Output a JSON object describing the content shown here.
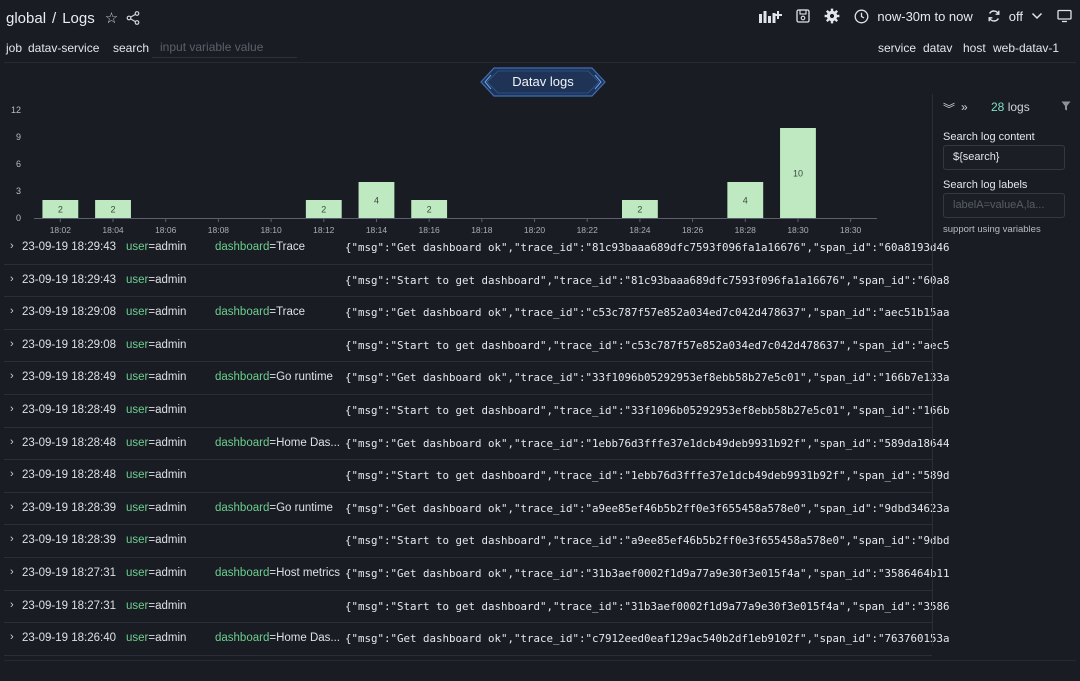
{
  "header": {
    "scope": "global",
    "separator": "/",
    "title": "Logs",
    "time_range": "now-30m to now",
    "refresh": "off"
  },
  "variables": {
    "job_label": "job",
    "job_value": "datav-service",
    "search_label": "search",
    "search_placeholder": "input variable value",
    "service_label": "service",
    "service_value": "datav",
    "host_label": "host",
    "host_value": "web-datav-1"
  },
  "panel": {
    "title": "Datav logs"
  },
  "chart_data": {
    "type": "bar",
    "categories": [
      "18:02",
      "18:04",
      "18:06",
      "18:08",
      "18:10",
      "18:12",
      "18:14",
      "18:16",
      "18:18",
      "18:20",
      "18:22",
      "18:24",
      "18:26",
      "18:28",
      "18:30",
      "18:30"
    ],
    "values": [
      2,
      2,
      0,
      0,
      0,
      2,
      4,
      2,
      0,
      0,
      0,
      2,
      0,
      4,
      10,
      0
    ],
    "yticks": [
      0,
      3,
      6,
      9,
      12
    ],
    "ylim": [
      0,
      12
    ],
    "bar_color": "#bfe9c1",
    "grid": false
  },
  "logs": [
    {
      "ts": "23-09-19 18:29:43",
      "user_key": "user",
      "user_val": "=admin",
      "dash_key": "dashboard",
      "dash_val": "=Trace",
      "msg": "{\"msg\":\"Get dashboard ok\",\"trace_id\":\"81c93baaa689dfc7593f096fa1a16676\",\"span_id\":\"60a8193d46"
    },
    {
      "ts": "23-09-19 18:29:43",
      "user_key": "user",
      "user_val": "=admin",
      "dash_key": "",
      "dash_val": "",
      "msg": "{\"msg\":\"Start to get dashboard\",\"trace_id\":\"81c93baaa689dfc7593f096fa1a16676\",\"span_id\":\"60a8"
    },
    {
      "ts": "23-09-19 18:29:08",
      "user_key": "user",
      "user_val": "=admin",
      "dash_key": "dashboard",
      "dash_val": "=Trace",
      "msg": "{\"msg\":\"Get dashboard ok\",\"trace_id\":\"c53c787f57e852a034ed7c042d478637\",\"span_id\":\"aec51b15aa"
    },
    {
      "ts": "23-09-19 18:29:08",
      "user_key": "user",
      "user_val": "=admin",
      "dash_key": "",
      "dash_val": "",
      "msg": "{\"msg\":\"Start to get dashboard\",\"trace_id\":\"c53c787f57e852a034ed7c042d478637\",\"span_id\":\"aec5"
    },
    {
      "ts": "23-09-19 18:28:49",
      "user_key": "user",
      "user_val": "=admin",
      "dash_key": "dashboard",
      "dash_val": "=Go runtime",
      "msg": "{\"msg\":\"Get dashboard ok\",\"trace_id\":\"33f1096b05292953ef8ebb58b27e5c01\",\"span_id\":\"166b7e133a"
    },
    {
      "ts": "23-09-19 18:28:49",
      "user_key": "user",
      "user_val": "=admin",
      "dash_key": "",
      "dash_val": "",
      "msg": "{\"msg\":\"Start to get dashboard\",\"trace_id\":\"33f1096b05292953ef8ebb58b27e5c01\",\"span_id\":\"166b"
    },
    {
      "ts": "23-09-19 18:28:48",
      "user_key": "user",
      "user_val": "=admin",
      "dash_key": "dashboard",
      "dash_val": "=Home Das...",
      "msg": "{\"msg\":\"Get dashboard ok\",\"trace_id\":\"1ebb76d3fffe37e1dcb49deb9931b92f\",\"span_id\":\"589da18644"
    },
    {
      "ts": "23-09-19 18:28:48",
      "user_key": "user",
      "user_val": "=admin",
      "dash_key": "",
      "dash_val": "",
      "msg": "{\"msg\":\"Start to get dashboard\",\"trace_id\":\"1ebb76d3fffe37e1dcb49deb9931b92f\",\"span_id\":\"589d"
    },
    {
      "ts": "23-09-19 18:28:39",
      "user_key": "user",
      "user_val": "=admin",
      "dash_key": "dashboard",
      "dash_val": "=Go runtime",
      "msg": "{\"msg\":\"Get dashboard ok\",\"trace_id\":\"a9ee85ef46b5b2ff0e3f655458a578e0\",\"span_id\":\"9dbd34623a"
    },
    {
      "ts": "23-09-19 18:28:39",
      "user_key": "user",
      "user_val": "=admin",
      "dash_key": "",
      "dash_val": "",
      "msg": "{\"msg\":\"Start to get dashboard\",\"trace_id\":\"a9ee85ef46b5b2ff0e3f655458a578e0\",\"span_id\":\"9dbd"
    },
    {
      "ts": "23-09-19 18:27:31",
      "user_key": "user",
      "user_val": "=admin",
      "dash_key": "dashboard",
      "dash_val": "=Host metrics",
      "msg": "{\"msg\":\"Get dashboard ok\",\"trace_id\":\"31b3aef0002f1d9a77a9e30f3e015f4a\",\"span_id\":\"3586464b11"
    },
    {
      "ts": "23-09-19 18:27:31",
      "user_key": "user",
      "user_val": "=admin",
      "dash_key": "",
      "dash_val": "",
      "msg": "{\"msg\":\"Start to get dashboard\",\"trace_id\":\"31b3aef0002f1d9a77a9e30f3e015f4a\",\"span_id\":\"3586"
    },
    {
      "ts": "23-09-19 18:26:40",
      "user_key": "user",
      "user_val": "=admin",
      "dash_key": "dashboard",
      "dash_val": "=Home Das...",
      "msg": "{\"msg\":\"Get dashboard ok\",\"trace_id\":\"c7912eed0eaf129ac540b2df1eb9102f\",\"span_id\":\"763760153a"
    }
  ],
  "sidebar": {
    "count": "28",
    "count_suffix": "logs",
    "content_label": "Search log content",
    "content_value": "${search}",
    "labels_label": "Search log labels",
    "labels_placeholder": "labelA=valueA,la...",
    "note": "support using variables"
  },
  "colors": {
    "background": "#191c23",
    "accent_green": "#6ccf8e",
    "count_teal": "#7ee0c6",
    "bar": "#bfe9c1"
  }
}
